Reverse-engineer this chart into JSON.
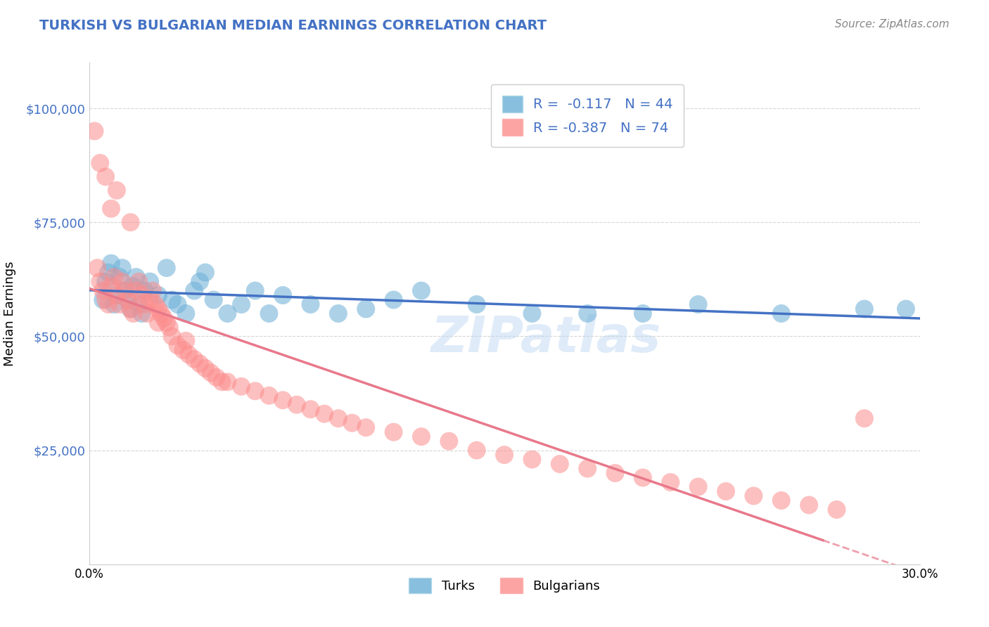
{
  "title": "TURKISH VS BULGARIAN MEDIAN EARNINGS CORRELATION CHART",
  "source_text": "Source: ZipAtlas.com",
  "ylabel": "Median Earnings",
  "ytick_labels": [
    "$25,000",
    "$50,000",
    "$75,000",
    "$100,000"
  ],
  "ytick_values": [
    25000,
    50000,
    75000,
    100000
  ],
  "xmin": 0.0,
  "xmax": 0.3,
  "ymin": 0,
  "ymax": 110000,
  "turks_color": "#6baed6",
  "bulgarians_color": "#fc8d8d",
  "turks_line_color": "#4472c4",
  "bulgarians_line_color": "#e8788a",
  "legend_turks_label": "R =  -0.117   N = 44",
  "legend_bulgarians_label": "R = -0.387   N = 74",
  "watermark": "ZIPatlas",
  "turks_scatter_x": [
    0.005,
    0.006,
    0.007,
    0.008,
    0.009,
    0.01,
    0.011,
    0.012,
    0.013,
    0.014,
    0.015,
    0.016,
    0.017,
    0.018,
    0.019,
    0.02,
    0.022,
    0.025,
    0.028,
    0.03,
    0.032,
    0.035,
    0.038,
    0.04,
    0.042,
    0.045,
    0.05,
    0.055,
    0.06,
    0.065,
    0.07,
    0.08,
    0.09,
    0.1,
    0.11,
    0.12,
    0.14,
    0.16,
    0.18,
    0.2,
    0.22,
    0.25,
    0.28,
    0.295
  ],
  "turks_scatter_y": [
    58000,
    62000,
    64000,
    66000,
    57000,
    59000,
    63000,
    65000,
    60000,
    58000,
    56000,
    61000,
    63000,
    57000,
    55000,
    60000,
    62000,
    59000,
    65000,
    58000,
    57000,
    55000,
    60000,
    62000,
    64000,
    58000,
    55000,
    57000,
    60000,
    55000,
    59000,
    57000,
    55000,
    56000,
    58000,
    60000,
    57000,
    55000,
    55000,
    55000,
    57000,
    55000,
    56000,
    56000
  ],
  "bulgarians_scatter_x": [
    0.002,
    0.003,
    0.004,
    0.005,
    0.006,
    0.007,
    0.008,
    0.009,
    0.01,
    0.011,
    0.012,
    0.013,
    0.014,
    0.015,
    0.016,
    0.017,
    0.018,
    0.019,
    0.02,
    0.021,
    0.022,
    0.023,
    0.024,
    0.025,
    0.026,
    0.027,
    0.028,
    0.029,
    0.03,
    0.032,
    0.034,
    0.036,
    0.038,
    0.04,
    0.042,
    0.044,
    0.046,
    0.048,
    0.05,
    0.055,
    0.06,
    0.065,
    0.07,
    0.075,
    0.08,
    0.085,
    0.09,
    0.1,
    0.11,
    0.12,
    0.13,
    0.14,
    0.15,
    0.16,
    0.17,
    0.18,
    0.19,
    0.2,
    0.21,
    0.22,
    0.23,
    0.24,
    0.25,
    0.26,
    0.27,
    0.095,
    0.035,
    0.025,
    0.015,
    0.01,
    0.008,
    0.006,
    0.004,
    0.28
  ],
  "bulgarians_scatter_y": [
    95000,
    65000,
    62000,
    60000,
    58000,
    57000,
    61000,
    63000,
    59000,
    57000,
    62000,
    60000,
    58000,
    56000,
    55000,
    60000,
    62000,
    59000,
    57000,
    55000,
    58000,
    60000,
    57000,
    56000,
    55000,
    54000,
    53000,
    52000,
    50000,
    48000,
    47000,
    46000,
    45000,
    44000,
    43000,
    42000,
    41000,
    40000,
    40000,
    39000,
    38000,
    37000,
    36000,
    35000,
    34000,
    33000,
    32000,
    30000,
    29000,
    28000,
    27000,
    25000,
    24000,
    23000,
    22000,
    21000,
    20000,
    19000,
    18000,
    17000,
    16000,
    15000,
    14000,
    13000,
    12000,
    31000,
    49000,
    53000,
    75000,
    82000,
    78000,
    85000,
    88000,
    32000
  ],
  "bulgarians_line_solid_xmax": 0.265,
  "bottom_legend_labels": [
    "Turks",
    "Bulgarians"
  ]
}
